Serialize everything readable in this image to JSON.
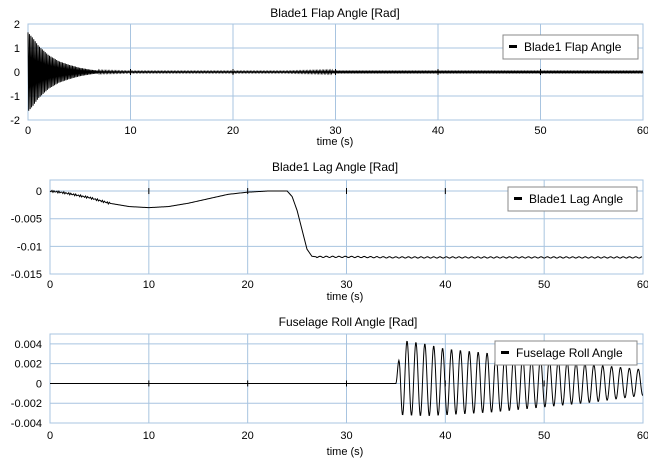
{
  "chart_data": [
    {
      "type": "line",
      "title": "Blade1 Flap Angle [Rad]",
      "xlabel": "time (s)",
      "ylabel": "",
      "xlim": [
        0,
        60
      ],
      "ylim": [
        -2,
        2
      ],
      "xticks": [
        0,
        10,
        20,
        30,
        40,
        50,
        60
      ],
      "xtick_labels": [
        "0",
        "10",
        "20",
        "30",
        "40",
        "50",
        "60"
      ],
      "yticks": [
        2,
        1,
        0,
        -1,
        -2
      ],
      "ytick_labels": [
        "2",
        "1",
        "0",
        "-1",
        "-2"
      ],
      "grid": true,
      "legend_position": "top-right",
      "series": [
        {
          "name": "Blade1 Flap Angle",
          "color": "#000000",
          "x": [
            0,
            0.5,
            1,
            1.5,
            2,
            3,
            4,
            5,
            6,
            7,
            10,
            20,
            25,
            30,
            40,
            50,
            60
          ],
          "y_envelope": [
            1.65,
            1.4,
            1.1,
            0.9,
            0.7,
            0.45,
            0.3,
            0.18,
            0.1,
            0.05,
            0.03,
            0.03,
            0.03,
            0.06,
            0.06,
            0.06,
            0.06
          ]
        }
      ]
    },
    {
      "type": "line",
      "title": "Blade1 Lag Angle [Rad]",
      "xlabel": "time (s)",
      "ylabel": "",
      "xlim": [
        0,
        60
      ],
      "ylim": [
        -0.015,
        0.002
      ],
      "xticks": [
        0,
        10,
        20,
        30,
        40,
        50,
        60
      ],
      "xtick_labels": [
        "0",
        "10",
        "20",
        "30",
        "40",
        "50",
        "60"
      ],
      "yticks": [
        0,
        -0.005,
        -0.01,
        -0.015
      ],
      "ytick_labels": [
        "0",
        "-0.005",
        "-0.01",
        "-0.015"
      ],
      "grid": true,
      "legend_position": "top-right",
      "series": [
        {
          "name": "Blade1 Lag Angle",
          "color": "#000000",
          "x": [
            0,
            1,
            2,
            4,
            6,
            8,
            10,
            12,
            14,
            16,
            18,
            20,
            22,
            24,
            24.5,
            25,
            25.5,
            26,
            26.5,
            27,
            30,
            35,
            40,
            50,
            60
          ],
          "y": [
            0,
            -0.0002,
            -0.0005,
            -0.0012,
            -0.0022,
            -0.0028,
            -0.003,
            -0.0028,
            -0.0022,
            -0.0014,
            -0.0006,
            -0.0002,
            0,
            0,
            -0.001,
            -0.0035,
            -0.007,
            -0.0105,
            -0.0118,
            -0.0119,
            -0.0119,
            -0.012,
            -0.012,
            -0.012,
            -0.012
          ]
        }
      ]
    },
    {
      "type": "line",
      "title": "Fuselage Roll Angle [Rad]",
      "xlabel": "time (s)",
      "ylabel": "",
      "xlim": [
        0,
        60
      ],
      "ylim": [
        -0.004,
        0.005
      ],
      "xticks": [
        0,
        10,
        20,
        30,
        40,
        50,
        60
      ],
      "xtick_labels": [
        "0",
        "10",
        "20",
        "30",
        "40",
        "50",
        "60"
      ],
      "yticks": [
        0.004,
        0.002,
        0,
        -0.002,
        -0.004
      ],
      "ytick_labels": [
        "0.004",
        "0.002",
        "0",
        "-0.002",
        "-0.004"
      ],
      "grid": true,
      "legend_position": "top-right",
      "series": [
        {
          "name": "Fuselage Roll Angle",
          "color": "#000000",
          "x": [
            0,
            35,
            35.5,
            38,
            40,
            45,
            50,
            55,
            60
          ],
          "y_upper": [
            0,
            0,
            0.0044,
            0.004,
            0.0035,
            0.003,
            0.0025,
            0.0019,
            0.0014
          ],
          "y_lower": [
            0,
            0,
            -0.0032,
            -0.0033,
            -0.0032,
            -0.0029,
            -0.0024,
            -0.0019,
            -0.0012
          ],
          "oscillation_period_s": 0.9
        }
      ]
    }
  ]
}
